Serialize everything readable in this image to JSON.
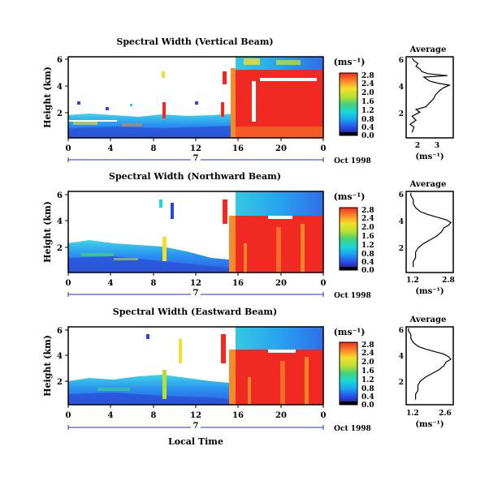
{
  "chart_data": [
    {
      "type": "heatmap",
      "title": "Spectral Width (Vertical Beam)",
      "ylabel": "Height (km)",
      "x_ticks": [
        "0",
        "4",
        "8",
        "12",
        "16",
        "20",
        "0"
      ],
      "y_ticks": [
        "2",
        "4",
        "6"
      ],
      "day_label": "7",
      "date_label": "Oct 1998",
      "colorbar": {
        "unit": "(ms⁻¹)",
        "ticks": [
          "0.0",
          "0.4",
          "0.8",
          "1.2",
          "1.6",
          "2.0",
          "2.4",
          "2.8"
        ],
        "range": [
          0,
          2.8
        ]
      },
      "average": {
        "title": "Average",
        "xlabel": "(ms⁻¹)",
        "x_ticks": [
          "2",
          "3"
        ],
        "y_ticks": [
          "2",
          "4",
          "6"
        ],
        "xlim": [
          1.4,
          3.8
        ],
        "ylim": [
          0,
          6
        ],
        "profile": [
          [
            1.7,
            0.4
          ],
          [
            1.8,
            0.8
          ],
          [
            1.6,
            1.0
          ],
          [
            1.9,
            1.3
          ],
          [
            1.7,
            1.6
          ],
          [
            2.1,
            1.9
          ],
          [
            1.9,
            2.1
          ],
          [
            2.4,
            2.3
          ],
          [
            2.6,
            2.6
          ],
          [
            2.8,
            2.9
          ],
          [
            2.9,
            3.2
          ],
          [
            3.1,
            3.5
          ],
          [
            3.3,
            3.7
          ],
          [
            3.6,
            3.9
          ],
          [
            3.0,
            4.05
          ],
          [
            2.6,
            4.2
          ],
          [
            2.4,
            4.4
          ],
          [
            2.3,
            4.5
          ],
          [
            3.5,
            4.6
          ],
          [
            2.5,
            4.75
          ],
          [
            2.2,
            4.9
          ],
          [
            2.1,
            5.1
          ],
          [
            1.9,
            5.3
          ],
          [
            2.0,
            5.5
          ],
          [
            1.8,
            5.7
          ],
          [
            1.7,
            5.9
          ]
        ]
      }
    },
    {
      "type": "heatmap",
      "title": "Spectral Width (Northward Beam)",
      "ylabel": "Height (km)",
      "x_ticks": [
        "0",
        "4",
        "8",
        "12",
        "16",
        "20",
        "0"
      ],
      "y_ticks": [
        "2",
        "4",
        "6"
      ],
      "day_label": "7",
      "date_label": "Oct 1998",
      "colorbar": {
        "unit": "(ms⁻¹)",
        "ticks": [
          "0.0",
          "0.4",
          "0.8",
          "1.2",
          "1.6",
          "2.0",
          "2.4",
          "2.8"
        ],
        "range": [
          0,
          2.8
        ]
      },
      "average": {
        "title": "Average",
        "xlabel": "(ms⁻¹)",
        "x_ticks": [
          "1.2",
          "2.8"
        ],
        "y_ticks": [
          "2",
          "4",
          "6"
        ],
        "xlim": [
          0.9,
          2.9
        ],
        "ylim": [
          0,
          6
        ],
        "profile": [
          [
            1.2,
            0.4
          ],
          [
            1.2,
            0.8
          ],
          [
            1.3,
            1.1
          ],
          [
            1.3,
            1.5
          ],
          [
            1.4,
            1.8
          ],
          [
            1.6,
            2.1
          ],
          [
            1.9,
            2.4
          ],
          [
            2.2,
            2.7
          ],
          [
            2.4,
            3.0
          ],
          [
            2.5,
            3.3
          ],
          [
            2.7,
            3.5
          ],
          [
            2.8,
            3.7
          ],
          [
            2.6,
            3.9
          ],
          [
            2.2,
            4.1
          ],
          [
            1.8,
            4.3
          ],
          [
            1.5,
            4.5
          ],
          [
            1.3,
            4.8
          ],
          [
            1.2,
            5.1
          ],
          [
            1.2,
            5.4
          ],
          [
            1.1,
            5.7
          ],
          [
            1.1,
            5.9
          ]
        ]
      }
    },
    {
      "type": "heatmap",
      "title": "Spectral Width (Eastward Beam)",
      "ylabel": "Height (km)",
      "x_ticks": [
        "0",
        "4",
        "8",
        "12",
        "16",
        "20",
        "0"
      ],
      "y_ticks": [
        "2",
        "4",
        "6"
      ],
      "day_label": "7",
      "date_label": "Oct 1998",
      "xlabel": "Local Time",
      "colorbar": {
        "unit": "(ms⁻¹)",
        "ticks": [
          "0.0",
          "0.4",
          "0.8",
          "1.2",
          "1.6",
          "2.0",
          "2.4",
          "2.8"
        ],
        "range": [
          0,
          2.8
        ]
      },
      "average": {
        "title": "Average",
        "xlabel": "(ms⁻¹)",
        "x_ticks": [
          "1.2",
          "2.6"
        ],
        "y_ticks": [
          "2",
          "4",
          "6"
        ],
        "xlim": [
          0.9,
          2.9
        ],
        "ylim": [
          0,
          6
        ],
        "profile": [
          [
            1.3,
            0.4
          ],
          [
            1.3,
            0.8
          ],
          [
            1.4,
            1.1
          ],
          [
            1.4,
            1.5
          ],
          [
            1.5,
            1.8
          ],
          [
            1.7,
            2.1
          ],
          [
            2.0,
            2.4
          ],
          [
            2.3,
            2.7
          ],
          [
            2.5,
            3.0
          ],
          [
            2.6,
            3.3
          ],
          [
            2.8,
            3.5
          ],
          [
            2.7,
            3.7
          ],
          [
            2.5,
            3.9
          ],
          [
            2.1,
            4.1
          ],
          [
            1.7,
            4.3
          ],
          [
            1.4,
            4.5
          ],
          [
            1.2,
            4.8
          ],
          [
            1.1,
            5.1
          ],
          [
            1.1,
            5.4
          ],
          [
            1.0,
            5.7
          ],
          [
            1.0,
            5.9
          ]
        ]
      }
    }
  ]
}
